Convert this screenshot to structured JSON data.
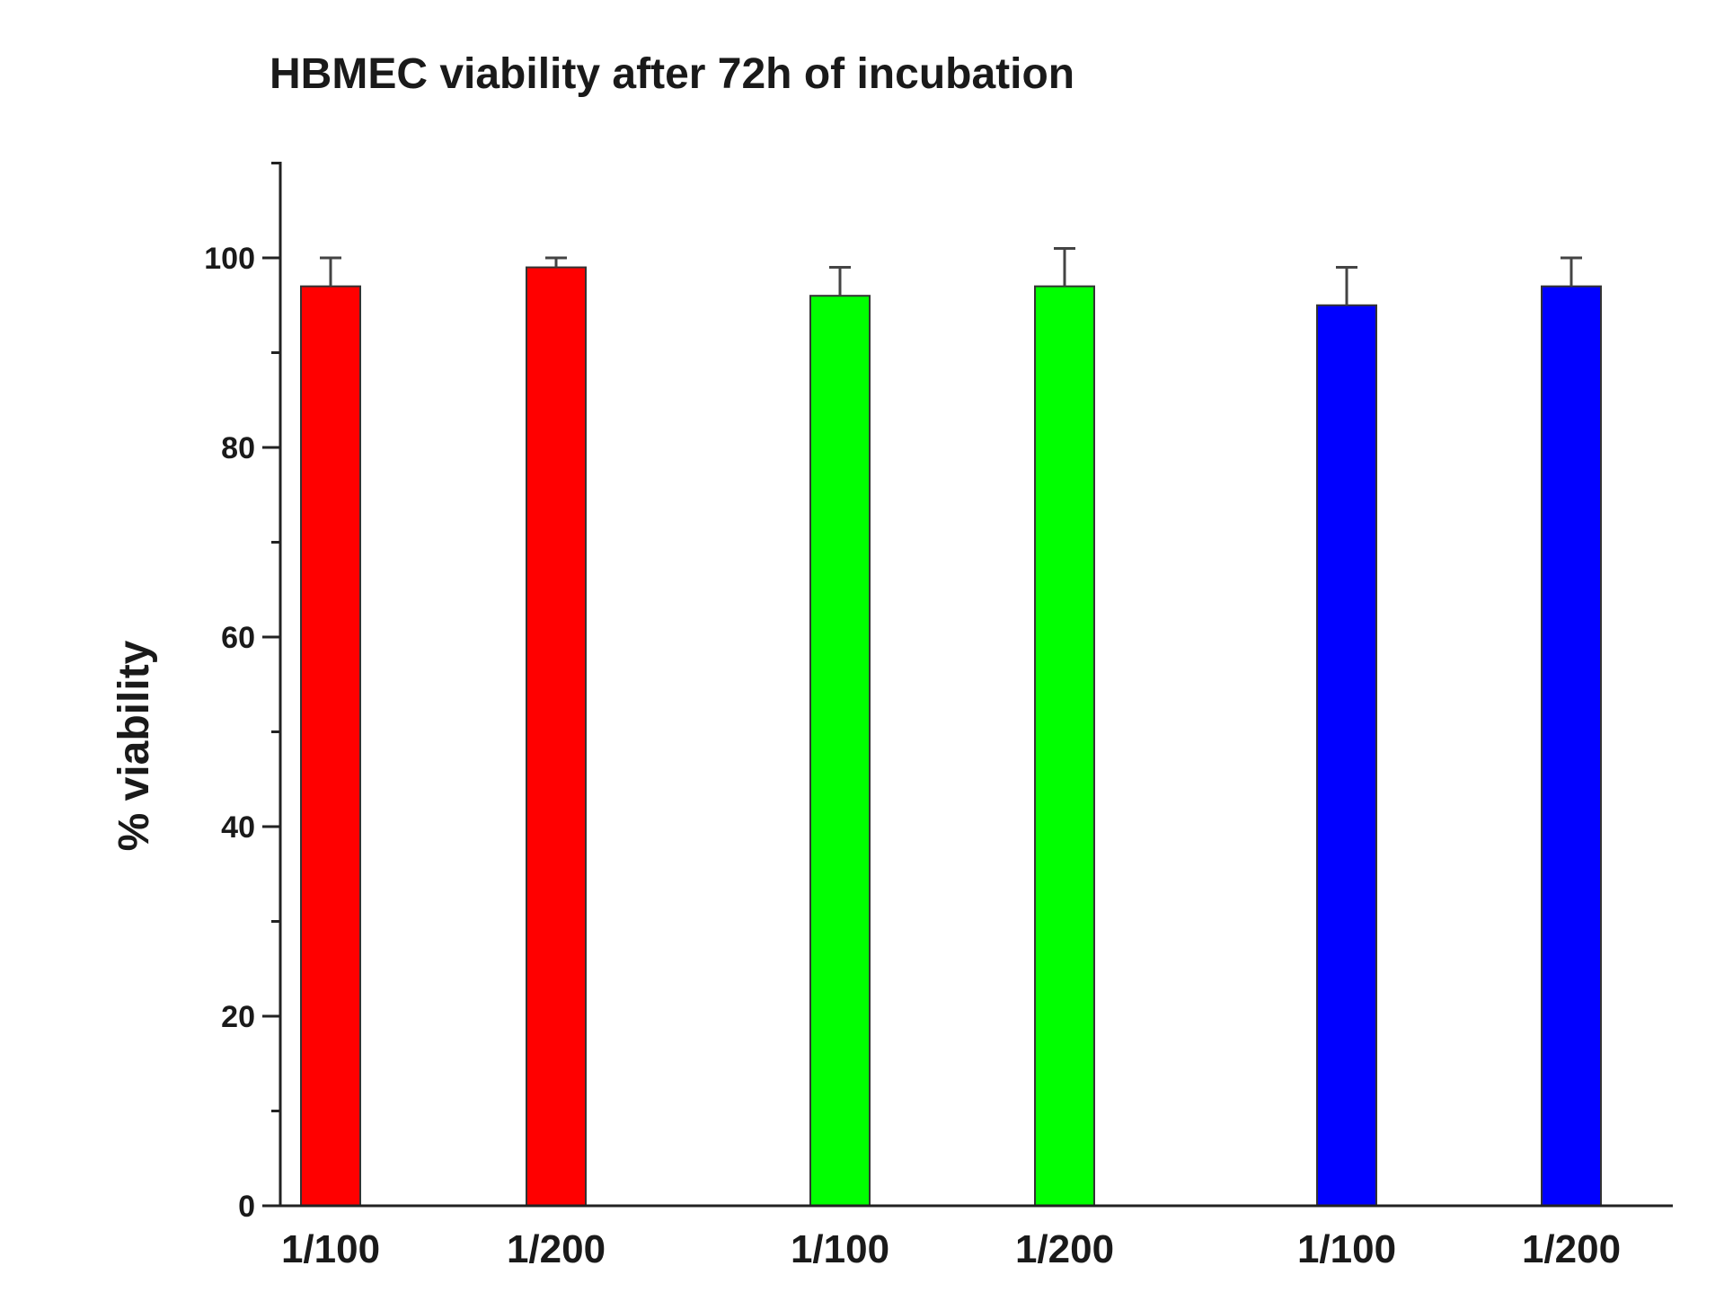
{
  "chart_data": {
    "type": "bar",
    "title": "HBMEC viability after 72h of incubation",
    "ylabel": "% viability",
    "xlabel": "",
    "ylim": [
      0,
      110
    ],
    "yticks": [
      0,
      20,
      40,
      60,
      80,
      100
    ],
    "categories": [
      "1/100",
      "1/200",
      "1/100",
      "1/200",
      "1/100",
      "1/200"
    ],
    "values": [
      97,
      99,
      96,
      97,
      95,
      97
    ],
    "errors": [
      3,
      1,
      3,
      4,
      4,
      3
    ],
    "colors": [
      "#ff0000",
      "#ff0000",
      "#00ff00",
      "#00ff00",
      "#0000ff",
      "#0000ff"
    ],
    "grid": false,
    "legend": "none"
  }
}
